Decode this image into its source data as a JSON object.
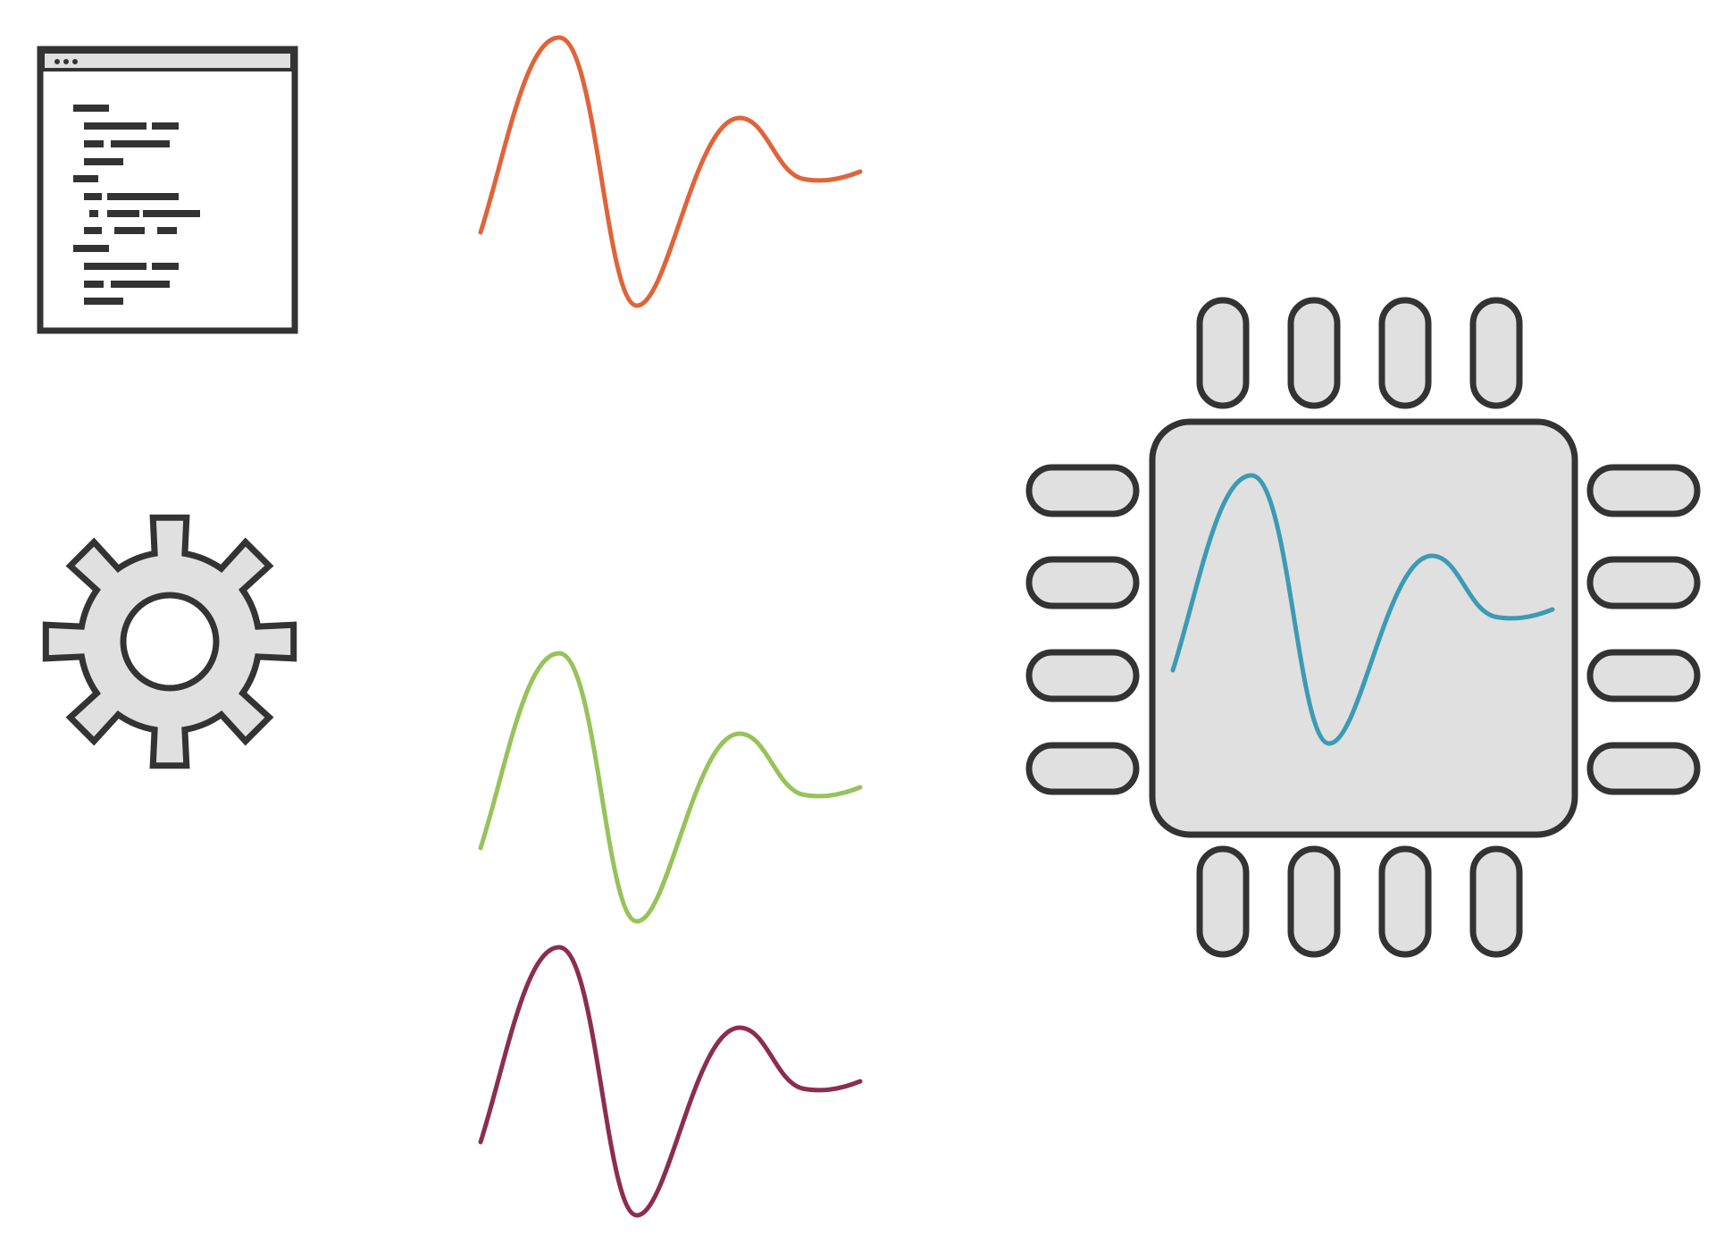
{
  "icons": {
    "code_window": "code-window-icon",
    "gear": "gear-icon",
    "chip": "microchip-icon"
  },
  "colors": {
    "outline": "#333333",
    "fill": "#e0e0e0",
    "wave_orange": "#e0643a",
    "wave_green": "#96c35a",
    "wave_maroon": "#8c2d50",
    "wave_teal": "#3c9bb4"
  },
  "waveforms": [
    {
      "id": "orange",
      "color_key": "wave_orange"
    },
    {
      "id": "green",
      "color_key": "wave_green"
    },
    {
      "id": "maroon",
      "color_key": "wave_maroon"
    },
    {
      "id": "teal",
      "color_key": "wave_teal"
    }
  ],
  "chip": {
    "pins_per_side": 4
  }
}
